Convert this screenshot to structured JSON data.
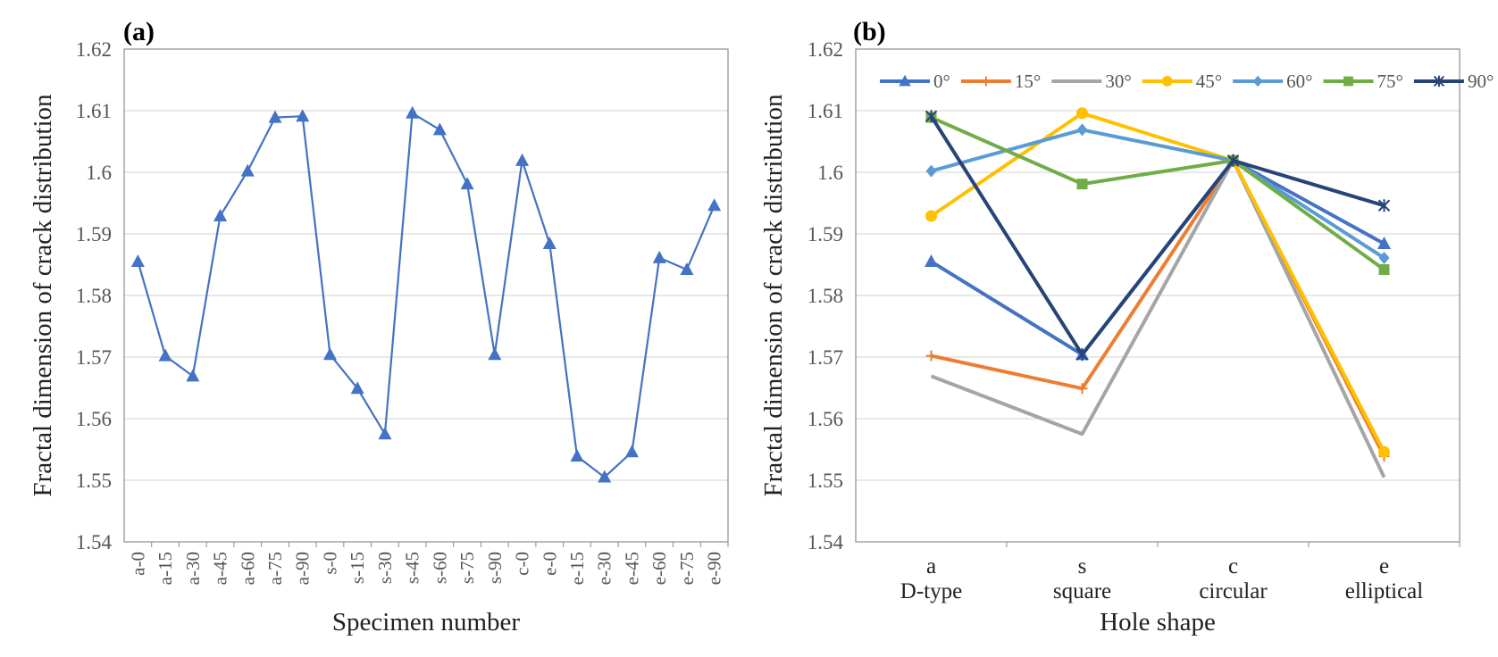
{
  "chart_data": [
    {
      "panel": "(a)",
      "type": "line",
      "xlabel": "Specimen number",
      "ylabel": "Fractal dimension of crack distribution",
      "ylim": [
        1.54,
        1.62
      ],
      "yticks": [
        "1.54",
        "1.55",
        "1.56",
        "1.57",
        "1.58",
        "1.59",
        "1.6",
        "1.61",
        "1.62"
      ],
      "grid": true,
      "categories": [
        "a-0",
        "a-15",
        "a-30",
        "a-45",
        "a-60",
        "a-75",
        "a-90",
        "s-0",
        "s-15",
        "s-30",
        "s-45",
        "s-60",
        "s-75",
        "s-90",
        "c-0",
        "e-0",
        "e-15",
        "e-30",
        "e-45",
        "e-60",
        "e-75",
        "e-90"
      ],
      "series": [
        {
          "name": "Fractal dimension",
          "color": "#4472C4",
          "marker": "triangle",
          "values": [
            1.5855,
            1.5702,
            1.5669,
            1.5929,
            1.6002,
            1.6089,
            1.6091,
            1.5704,
            1.5649,
            1.5575,
            1.6096,
            1.6069,
            1.5981,
            1.5704,
            1.6019,
            1.5884,
            1.5539,
            1.5505,
            1.5546,
            1.5861,
            1.5842,
            1.5946
          ]
        }
      ]
    },
    {
      "panel": "(b)",
      "type": "line",
      "xlabel": "Hole shape",
      "ylabel": "Fractal dimension of crack distribution",
      "ylim": [
        1.54,
        1.62
      ],
      "yticks": [
        "1.54",
        "1.55",
        "1.56",
        "1.57",
        "1.58",
        "1.59",
        "1.6",
        "1.61",
        "1.62"
      ],
      "grid": true,
      "legend_position": "top",
      "categories": [
        {
          "code": "a",
          "name": "D-type"
        },
        {
          "code": "s",
          "name": "square"
        },
        {
          "code": "c",
          "name": "circular"
        },
        {
          "code": "e",
          "name": "elliptical"
        }
      ],
      "series": [
        {
          "name": "0°",
          "color": "#4472C4",
          "marker": "triangle",
          "values": [
            1.5855,
            1.5704,
            1.6019,
            1.5884
          ]
        },
        {
          "name": "15°",
          "color": "#ED7D31",
          "marker": "plus",
          "values": [
            1.5702,
            1.5649,
            1.6019,
            1.5539
          ]
        },
        {
          "name": "30°",
          "color": "#A5A5A5",
          "marker": "none",
          "values": [
            1.5669,
            1.5575,
            1.6019,
            1.5505
          ]
        },
        {
          "name": "45°",
          "color": "#FFC000",
          "marker": "circle",
          "values": [
            1.5929,
            1.6096,
            1.6019,
            1.5546
          ]
        },
        {
          "name": "60°",
          "color": "#5B9BD5",
          "marker": "diamond",
          "values": [
            1.6002,
            1.6069,
            1.6019,
            1.5861
          ]
        },
        {
          "name": "75°",
          "color": "#70AD47",
          "marker": "square",
          "values": [
            1.6089,
            1.5981,
            1.6019,
            1.5842
          ]
        },
        {
          "name": "90°",
          "color": "#264478",
          "marker": "asterisk",
          "values": [
            1.6091,
            1.5704,
            1.6019,
            1.5946
          ]
        }
      ]
    }
  ]
}
